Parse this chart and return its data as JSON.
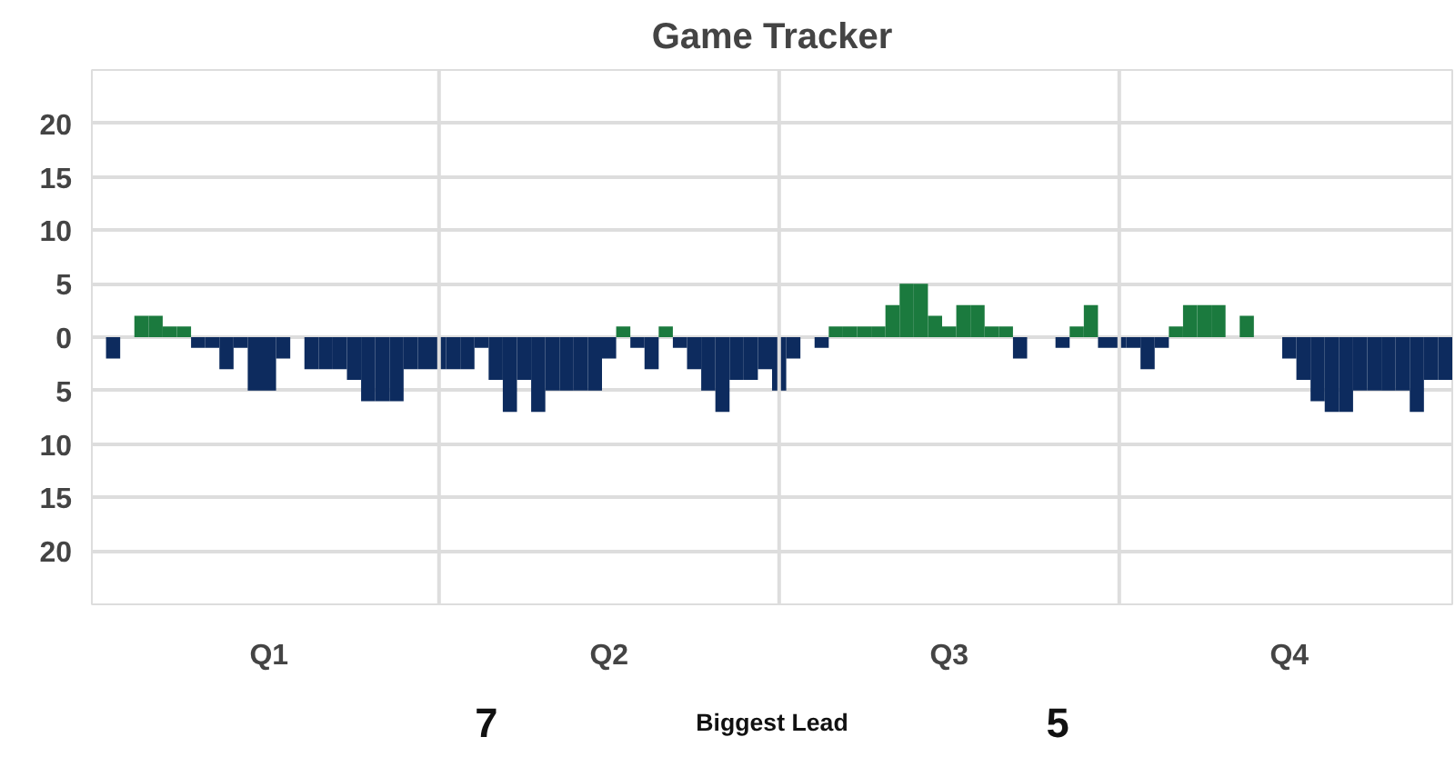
{
  "chart_data": {
    "type": "bar",
    "title": "Game Tracker",
    "categories": [
      null,
      null,
      null,
      null,
      null,
      null,
      null,
      null,
      null,
      null,
      null,
      null,
      "Q1",
      null,
      null,
      null,
      null,
      null,
      null,
      null,
      null,
      null,
      null,
      null,
      null,
      null,
      null,
      null,
      null,
      null,
      null,
      null,
      null,
      null,
      null,
      null,
      "Q2",
      null,
      null,
      null,
      null,
      null,
      null,
      null,
      null,
      null,
      null,
      null,
      null,
      null,
      null,
      null,
      null,
      null,
      null,
      null,
      null,
      null,
      null,
      null,
      "Q3",
      null,
      null,
      null,
      null,
      null,
      null,
      null,
      null,
      null,
      null,
      null,
      null,
      null,
      null,
      null,
      null,
      null,
      null,
      null,
      null,
      null,
      null,
      null,
      "Q4",
      null,
      null,
      null,
      null,
      null,
      null,
      null,
      null,
      null,
      null,
      null
    ],
    "series": [
      {
        "color": "#1b7a3e",
        "values": [
          null,
          null,
          null,
          2,
          2,
          1,
          1,
          null,
          null,
          null,
          null,
          null,
          null,
          null,
          null,
          null,
          null,
          null,
          null,
          null,
          null,
          null,
          null,
          null,
          null,
          null,
          null,
          null,
          null,
          null,
          null,
          null,
          null,
          null,
          null,
          null,
          null,
          1,
          null,
          null,
          1,
          null,
          null,
          null,
          null,
          null,
          null,
          null,
          null,
          null,
          null,
          null,
          1,
          1,
          1,
          1,
          3,
          5,
          5,
          2,
          1,
          3,
          3,
          1,
          1,
          null,
          null,
          null,
          null,
          1,
          3,
          null,
          null,
          null,
          null,
          null,
          1,
          3,
          3,
          3,
          null,
          2,
          null,
          null,
          null,
          null,
          null,
          null,
          null,
          null,
          null,
          null,
          null,
          null,
          null,
          null
        ]
      },
      {
        "color": "#0d2b5e",
        "values": [
          null,
          -2,
          null,
          null,
          null,
          null,
          null,
          -1,
          -1,
          -3,
          -1,
          -5,
          -5,
          -2,
          null,
          -3,
          -3,
          -3,
          -4,
          -6,
          -6,
          -6,
          -3,
          -3,
          -3,
          -3,
          -3,
          -1,
          -4,
          -7,
          -4,
          -7,
          -5,
          -5,
          -5,
          -5,
          -2,
          null,
          -1,
          -3,
          null,
          -1,
          -3,
          -5,
          -7,
          -4,
          -4,
          -3,
          -5,
          -2,
          null,
          -1,
          null,
          null,
          null,
          null,
          null,
          null,
          null,
          null,
          null,
          null,
          null,
          null,
          null,
          -2,
          null,
          null,
          -1,
          null,
          null,
          -1,
          -1,
          -1,
          -3,
          -1,
          null,
          null,
          null,
          null,
          null,
          null,
          null,
          null,
          -2,
          -4,
          -6,
          -7,
          -7,
          -5,
          -5,
          -5,
          -5,
          -7,
          -4,
          -4
        ]
      }
    ],
    "ylim": [
      -25,
      25
    ],
    "yticks": [
      20,
      15,
      10,
      5,
      0,
      {
        "value": -5,
        "label": "5"
      },
      {
        "value": -10,
        "label": "10"
      },
      {
        "value": -15,
        "label": "15"
      },
      {
        "value": -20,
        "label": "20"
      }
    ],
    "grid": "y",
    "annotations": [
      "7",
      "Biggest Lead",
      "5"
    ]
  }
}
